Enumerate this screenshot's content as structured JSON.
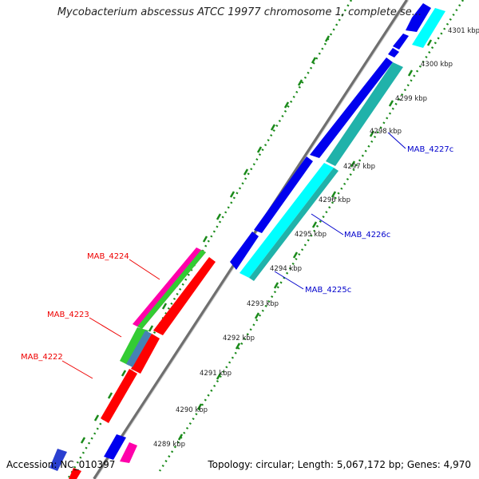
{
  "title": "Mycobacterium abscessus ATCC 19977 chromosome 1, complete se...",
  "footer": {
    "accession_label": "Accession:",
    "accession": "NC_010397",
    "topology": "Topology: circular; Length: 5,067,172 bp; Genes: 4,970"
  },
  "ticks": [
    "4289 kbp",
    "4290 kbp",
    "4291 kbp",
    "4292 kbp",
    "4293 kbp",
    "4294 kbp",
    "4295 kbp",
    "4296 kbp",
    "4297 kbp",
    "4298 kbp",
    "4299 kbp",
    "4300 kbp",
    "4301 kbp"
  ],
  "gene_labels": {
    "left": [
      "MAB_4224",
      "MAB_4223",
      "MAB_4222"
    ],
    "right": [
      "MAB_4227c",
      "MAB_4226c",
      "MAB_4225c"
    ]
  },
  "colors": {
    "forward": "#ff0000",
    "reverse": "#0000ee",
    "cyan": "#00ffff",
    "teal": "#20b2aa",
    "green": "#33cc33",
    "magenta": "#ff00aa",
    "dots": "#1a8a1a",
    "backbone": "#888888",
    "label_left": "#ee0000",
    "label_right": "#0000cc"
  }
}
